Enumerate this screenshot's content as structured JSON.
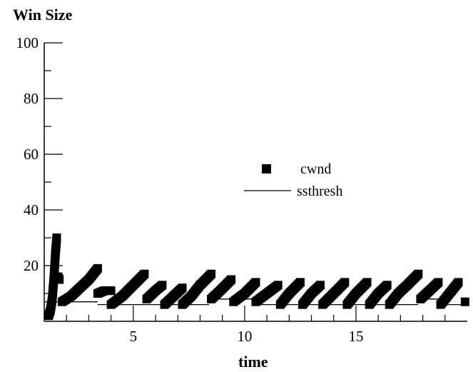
{
  "chart_data": {
    "type": "scatter",
    "title": "",
    "ylabel": "Win Size",
    "xlabel": "time",
    "xlim": [
      1.0,
      20.0
    ],
    "ylim": [
      0,
      100
    ],
    "x_ticks": [
      5,
      10,
      15
    ],
    "y_ticks": [
      20,
      40,
      60,
      80,
      100
    ],
    "grid": false,
    "legend_position": "center-right",
    "series": [
      {
        "name": "cwnd",
        "style": "square-markers",
        "color": "#000000",
        "segments": [
          {
            "x": [
              1.2,
              1.28,
              1.36,
              1.44,
              1.5,
              1.56
            ],
            "y": [
              2,
              4,
              8,
              16,
              24,
              30
            ]
          },
          {
            "x": [
              1.62,
              1.68
            ],
            "y": [
              16,
              15
            ]
          },
          {
            "x": [
              1.8,
              2.2,
              2.6,
              3.0,
              3.4
            ],
            "y": [
              7,
              9,
              12,
              15,
              19
            ]
          },
          {
            "x": [
              3.4,
              3.7,
              4.0
            ],
            "y": [
              10,
              11,
              11
            ]
          },
          {
            "x": [
              4.0,
              4.5,
              5.0,
              5.5
            ],
            "y": [
              6,
              9,
              13,
              17
            ]
          },
          {
            "x": [
              5.6,
              6.0,
              6.3
            ],
            "y": [
              8,
              11,
              13
            ]
          },
          {
            "x": [
              6.4,
              6.8,
              7.2
            ],
            "y": [
              6,
              9,
              12
            ]
          },
          {
            "x": [
              7.2,
              7.6,
              8.0,
              8.5
            ],
            "y": [
              6,
              9,
              13,
              17
            ]
          },
          {
            "x": [
              8.5,
              8.9,
              9.4
            ],
            "y": [
              8,
              11,
              15
            ]
          },
          {
            "x": [
              9.5,
              10.0,
              10.5
            ],
            "y": [
              7,
              10,
              14
            ]
          },
          {
            "x": [
              10.5,
              11.0,
              11.5
            ],
            "y": [
              7,
              10,
              13
            ]
          },
          {
            "x": [
              11.6,
              12.0,
              12.5
            ],
            "y": [
              6,
              10,
              14
            ]
          },
          {
            "x": [
              12.6,
              13.0,
              13.4
            ],
            "y": [
              6,
              10,
              13
            ]
          },
          {
            "x": [
              13.5,
              14.0,
              14.5
            ],
            "y": [
              6,
              10,
              14
            ]
          },
          {
            "x": [
              14.6,
              15.0,
              15.5
            ],
            "y": [
              6,
              10,
              14
            ]
          },
          {
            "x": [
              15.6,
              16.0,
              16.4
            ],
            "y": [
              6,
              10,
              13
            ]
          },
          {
            "x": [
              16.5,
              16.9,
              17.3,
              17.8
            ],
            "y": [
              6,
              10,
              13,
              17
            ]
          },
          {
            "x": [
              17.9,
              18.3,
              18.7
            ],
            "y": [
              8,
              11,
              14
            ]
          },
          {
            "x": [
              18.8,
              19.2,
              19.6
            ],
            "y": [
              6,
              10,
              14
            ]
          },
          {
            "x": [
              19.9
            ],
            "y": [
              7
            ]
          }
        ]
      },
      {
        "name": "ssthresh",
        "style": "line",
        "color": "#000000",
        "steps": [
          {
            "x": [
              1.0,
              1.7
            ],
            "y": 7
          },
          {
            "x": [
              1.7,
              3.4
            ],
            "y": 7
          },
          {
            "x": [
              3.4,
              8.4
            ],
            "y": 6
          },
          {
            "x": [
              8.4,
              10.6
            ],
            "y": 8
          },
          {
            "x": [
              10.6,
              17.8
            ],
            "y": 6
          },
          {
            "x": [
              17.8,
              19.0
            ],
            "y": 8
          },
          {
            "x": [
              19.0,
              20.0
            ],
            "y": 6
          }
        ]
      }
    ]
  }
}
